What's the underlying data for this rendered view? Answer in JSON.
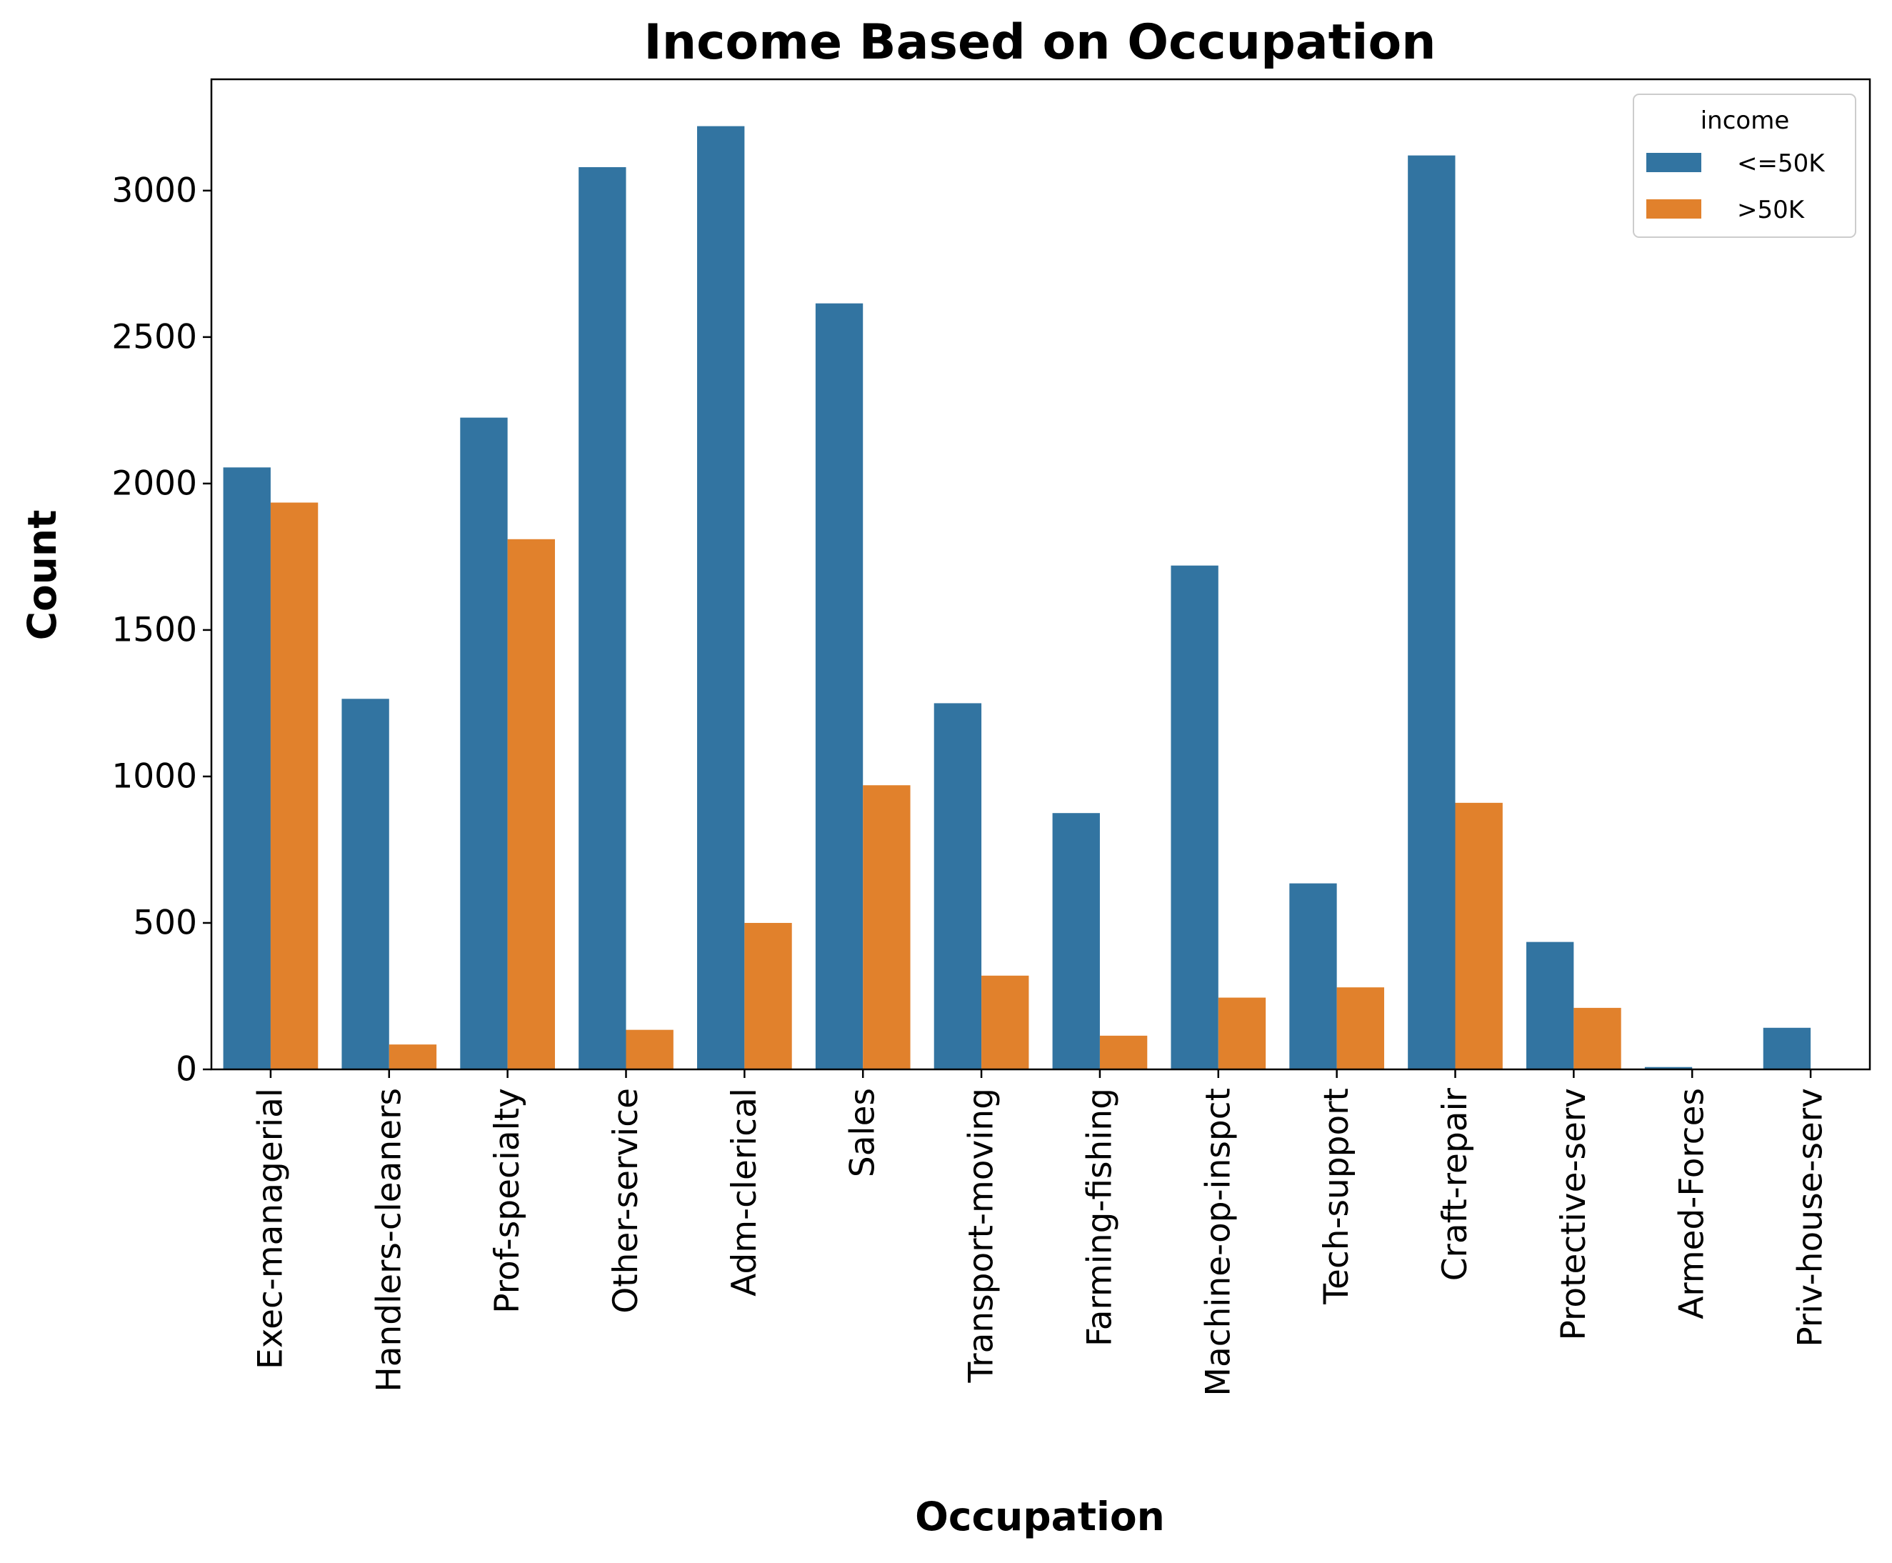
{
  "chart_data": {
    "type": "bar",
    "title": "Income Based on Occupation",
    "xlabel": "Occupation",
    "ylabel": "Count",
    "ylim": [
      0,
      3380
    ],
    "yticks": [
      0,
      500,
      1000,
      1500,
      2000,
      2500,
      3000
    ],
    "categories": [
      "Exec-managerial",
      "Handlers-cleaners",
      "Prof-specialty",
      "Other-service",
      "Adm-clerical",
      "Sales",
      "Transport-moving",
      "Farming-fishing",
      "Machine-op-inspct",
      "Tech-support",
      "Craft-repair",
      "Protective-serv",
      "Armed-Forces",
      "Priv-house-serv"
    ],
    "series": [
      {
        "name": "<=50K",
        "color": "#3274a1",
        "values": [
          2055,
          1265,
          2225,
          3080,
          3220,
          2615,
          1250,
          875,
          1720,
          635,
          3120,
          435,
          8,
          142
        ]
      },
      {
        "name": ">50K",
        "color": "#e1812c",
        "values": [
          1935,
          85,
          1810,
          135,
          500,
          970,
          320,
          115,
          245,
          280,
          910,
          210,
          1,
          1
        ]
      }
    ],
    "legend": {
      "title": "income",
      "placement": "top-right"
    },
    "grid": false
  }
}
